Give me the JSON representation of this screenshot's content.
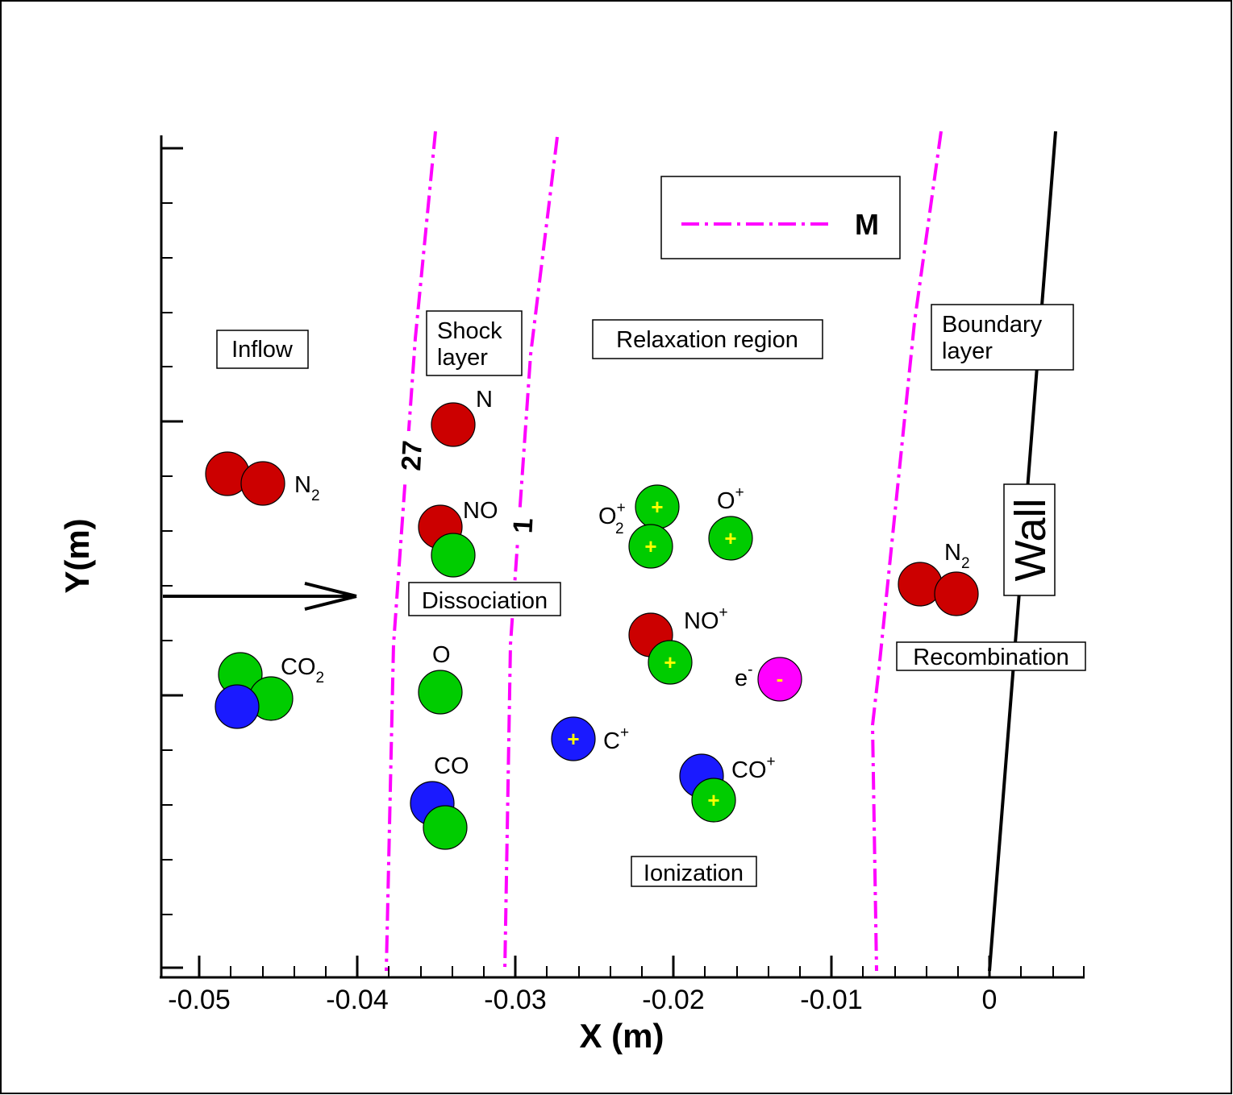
{
  "axes": {
    "xlabel": "X (m)",
    "ylabel": "Y(m)",
    "x_ticks": [
      "-0.05",
      "-0.04",
      "-0.03",
      "-0.02",
      "-0.01",
      "0"
    ]
  },
  "legend": {
    "label": "M"
  },
  "contours": [
    {
      "label": "27"
    },
    {
      "label": "1"
    },
    {
      "label": ""
    }
  ],
  "regions": {
    "inflow": "Inflow",
    "shock_line1": "Shock",
    "shock_line2": "layer",
    "relaxation": "Relaxation region",
    "boundary_line1": "Boundary",
    "boundary_line2": "layer",
    "dissociation": "Dissociation",
    "recombination": "Recombination",
    "ionization": "Ionization",
    "wall": "Wall"
  },
  "species": {
    "n2_inflow": {
      "main": "N",
      "sub": "2"
    },
    "co2": {
      "main": "CO",
      "sub": "2"
    },
    "n": {
      "main": "N"
    },
    "no": {
      "main": "NO"
    },
    "o": {
      "main": "O"
    },
    "co": {
      "main": "CO"
    },
    "o2_ion": {
      "main": "O",
      "sup": "+",
      "sub": "2"
    },
    "o_ion": {
      "main": "O",
      "sup": "+"
    },
    "no_ion": {
      "main": "NO",
      "sup": "+"
    },
    "e": {
      "main": "e",
      "sup": "-"
    },
    "c_ion": {
      "main": "C",
      "sup": "+"
    },
    "co_ion": {
      "main": "CO",
      "sup": "+"
    },
    "n2_wall": {
      "main": "N",
      "sub": "2"
    }
  },
  "signs": {
    "plus": "+",
    "minus": "-"
  },
  "colors": {
    "nitrogen": "#cc0000",
    "oxygen": "#00cc00",
    "carbon": "#1a1aff",
    "electron": "#ff00ff",
    "contour": "#ff00ff",
    "sign": "#ffff00"
  }
}
